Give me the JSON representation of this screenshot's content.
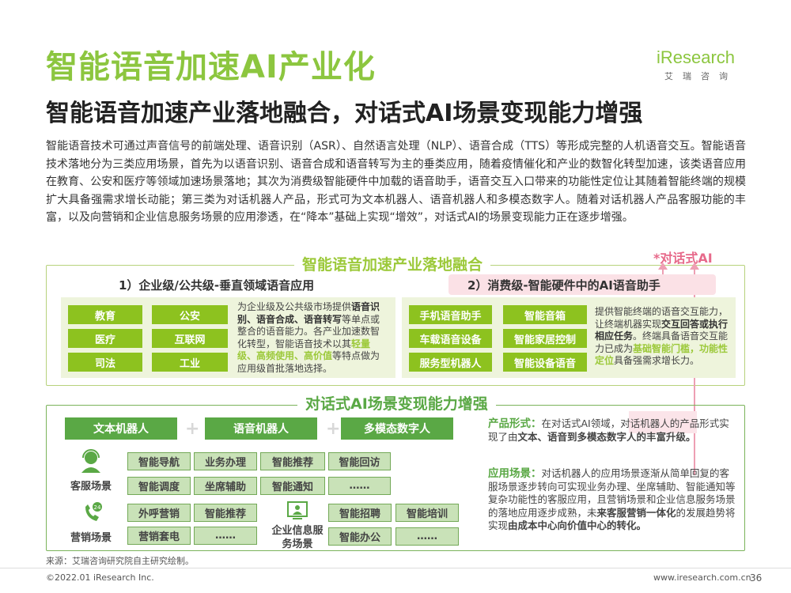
{
  "title": "智能语音加速AI产业化",
  "subtitle": "智能语音加速产业落地融合，对话式AI场景变现能力增强",
  "logo": {
    "brand": "iResearch",
    "cn": "艾瑞咨询"
  },
  "paragraph": "智能语音技术可通过声音信号的前端处理、语音识别（ASR）、自然语言处理（NLP）、语音合成（TTS）等形成完整的人机语音交互。智能语音技术落地分为三类应用场景，首先为以语音识别、语音合成和语音转写为主的垂类应用，随着疫情催化和产业的数智化转型加速，该类语音应用在教育、公安和医疗等领域加速场景落地；其次为消费级智能硬件中加载的语音助手，语音交互入口带来的功能性定位让其随着智能终端的规模扩大具备强需求增长动能；第三类为对话机器人产品，形式可为文本机器人、语音机器人和多模态数字人。随着对话机器人产品客服功能的丰富，以及向营销和企业信息服务场景的应用渗透，在“降本”基础上实现“增效”，对话式AI的场景变现能力正在逐步增强。",
  "section1": {
    "header": "智能语音加速产业落地融合",
    "ai_label": "*对话式AI",
    "left": {
      "title": "1）企业级/公共级-垂直领域语音应用",
      "buttons": [
        "教育",
        "公安",
        "医疗",
        "互联网",
        "司法",
        "工业"
      ],
      "desc": [
        "为企业级及公共级市场提供",
        "语音识别、语音合成、语音转写",
        "等单点或整合的语音能力。各产业加速数智化转型，智能语音技术以其",
        "轻量级、高频使用、高价值",
        "等特点做为应用级首批落地选择。"
      ]
    },
    "right": {
      "title": "2）消费级-智能硬件中的AI语音助手",
      "buttons": [
        "手机语音助手",
        "智能音箱",
        "车载语音设备",
        "智能家居控制",
        "服务型机器人",
        "智能设备语音"
      ],
      "desc": [
        "提供智能终端的语音交互能力，让终端机器实现",
        "交互回答或执行相应任务",
        "。终端具备语音交互能力已成为",
        "基础智能门槛，功能性定位",
        "具备强需求增长力。"
      ]
    }
  },
  "section2": {
    "header": "对话式AI场景变现能力增强",
    "bars": [
      "文本机器人",
      "语音机器人",
      "多模态数字人"
    ],
    "plus": "+",
    "customer_service": {
      "label": "客服场景",
      "cells": [
        "智能导航",
        "业务办理",
        "智能推荐",
        "智能回访",
        "智能调度",
        "坐席辅助",
        "智能通知",
        "……"
      ]
    },
    "marketing": {
      "label": "营销场景",
      "cells": [
        "外呼营销",
        "智能推荐",
        "营销套电",
        "……"
      ]
    },
    "enterprise": {
      "label": "企业信息服务场景",
      "cells": [
        "智能招聘",
        "智能培训",
        "智能办公",
        "……"
      ]
    },
    "product_form": {
      "key": "产品形式：",
      "t1": "在对话式AI领域，对话机器人的产品形式实现了由",
      "b1": "文本、语音到多模态数字人的丰富升级。"
    },
    "scenario": {
      "key": "应用场景：",
      "t1": "对话机器人的应用场景逐渐从简单回复的客服场景逐步转向可实现业务办理、坐席辅助、智能通知等复杂功能性的客服应用，且营销场景和企业信息服务场景的落地应用逐步成熟，未",
      "b1": "来客服营销一体化",
      "t2": "的发展趋势将实现",
      "b2": "由成本中心向价值中心的转化。"
    }
  },
  "footer": {
    "source": "来源：艾瑞咨询研究院自主研究绘制。",
    "copyright": "©2022.01 iResearch Inc.",
    "url": "www.iresearch.com.cn",
    "page": "36"
  },
  "colors": {
    "title_green": "#8cc63f",
    "lime": "#8dc21f",
    "dark_green": "#5aa845",
    "pink": "#e76a8b"
  }
}
